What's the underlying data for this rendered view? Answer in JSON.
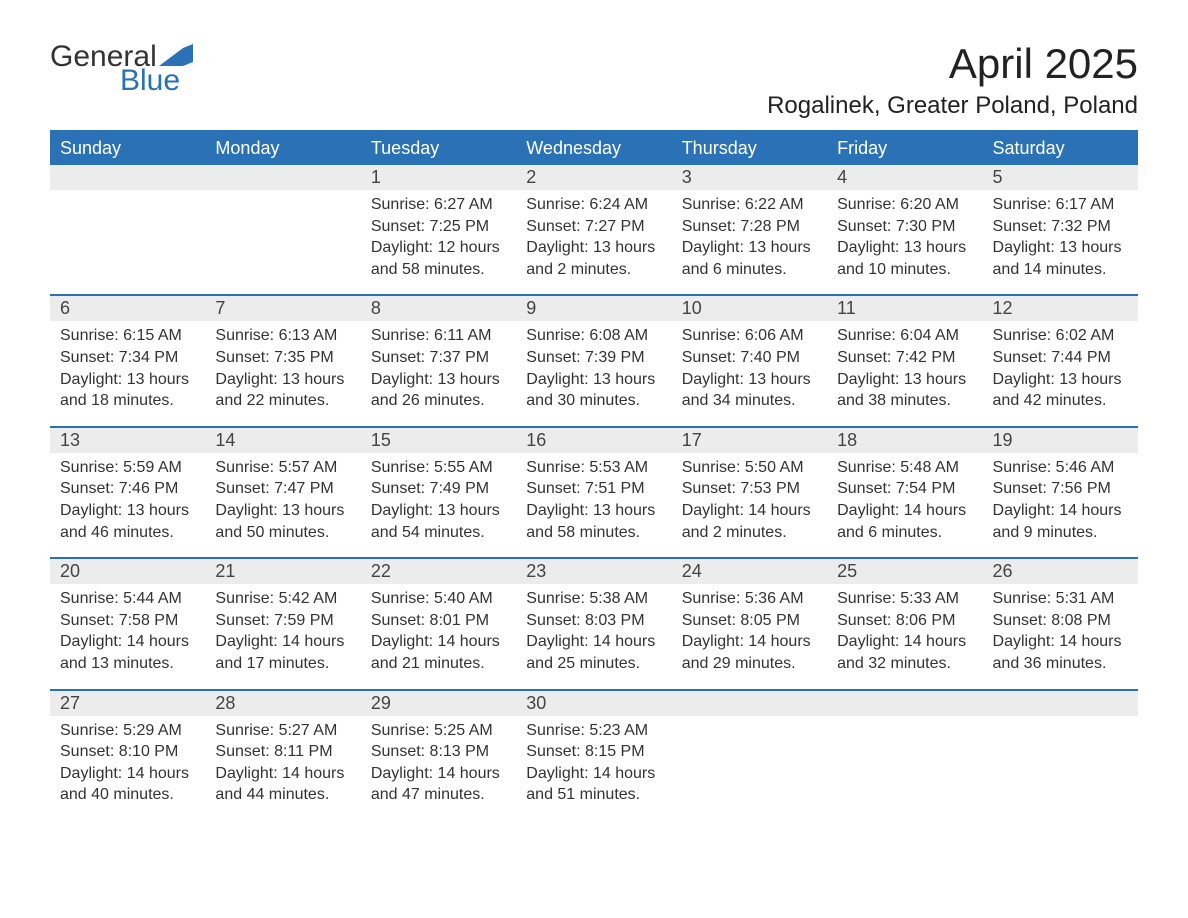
{
  "brand": {
    "general": "General",
    "blue": "Blue"
  },
  "title": "April 2025",
  "location": "Rogalinek, Greater Poland, Poland",
  "colors": {
    "accent": "#2a72b5",
    "header_bg": "#2a72b5",
    "header_text": "#ffffff",
    "daynum_bg": "#ececec",
    "body_text": "#333333",
    "page_bg": "#ffffff"
  },
  "typography": {
    "title_fontsize": 42,
    "location_fontsize": 24,
    "dow_fontsize": 18,
    "daynum_fontsize": 18,
    "cell_fontsize": 16,
    "logo_fontsize": 30
  },
  "layout": {
    "columns": 7,
    "rows": 5
  },
  "days_of_week": [
    "Sunday",
    "Monday",
    "Tuesday",
    "Wednesday",
    "Thursday",
    "Friday",
    "Saturday"
  ],
  "weeks": [
    [
      {
        "day": "",
        "sunrise": "",
        "sunset": "",
        "daylight1": "",
        "daylight2": ""
      },
      {
        "day": "",
        "sunrise": "",
        "sunset": "",
        "daylight1": "",
        "daylight2": ""
      },
      {
        "day": "1",
        "sunrise": "Sunrise: 6:27 AM",
        "sunset": "Sunset: 7:25 PM",
        "daylight1": "Daylight: 12 hours",
        "daylight2": "and 58 minutes."
      },
      {
        "day": "2",
        "sunrise": "Sunrise: 6:24 AM",
        "sunset": "Sunset: 7:27 PM",
        "daylight1": "Daylight: 13 hours",
        "daylight2": "and 2 minutes."
      },
      {
        "day": "3",
        "sunrise": "Sunrise: 6:22 AM",
        "sunset": "Sunset: 7:28 PM",
        "daylight1": "Daylight: 13 hours",
        "daylight2": "and 6 minutes."
      },
      {
        "day": "4",
        "sunrise": "Sunrise: 6:20 AM",
        "sunset": "Sunset: 7:30 PM",
        "daylight1": "Daylight: 13 hours",
        "daylight2": "and 10 minutes."
      },
      {
        "day": "5",
        "sunrise": "Sunrise: 6:17 AM",
        "sunset": "Sunset: 7:32 PM",
        "daylight1": "Daylight: 13 hours",
        "daylight2": "and 14 minutes."
      }
    ],
    [
      {
        "day": "6",
        "sunrise": "Sunrise: 6:15 AM",
        "sunset": "Sunset: 7:34 PM",
        "daylight1": "Daylight: 13 hours",
        "daylight2": "and 18 minutes."
      },
      {
        "day": "7",
        "sunrise": "Sunrise: 6:13 AM",
        "sunset": "Sunset: 7:35 PM",
        "daylight1": "Daylight: 13 hours",
        "daylight2": "and 22 minutes."
      },
      {
        "day": "8",
        "sunrise": "Sunrise: 6:11 AM",
        "sunset": "Sunset: 7:37 PM",
        "daylight1": "Daylight: 13 hours",
        "daylight2": "and 26 minutes."
      },
      {
        "day": "9",
        "sunrise": "Sunrise: 6:08 AM",
        "sunset": "Sunset: 7:39 PM",
        "daylight1": "Daylight: 13 hours",
        "daylight2": "and 30 minutes."
      },
      {
        "day": "10",
        "sunrise": "Sunrise: 6:06 AM",
        "sunset": "Sunset: 7:40 PM",
        "daylight1": "Daylight: 13 hours",
        "daylight2": "and 34 minutes."
      },
      {
        "day": "11",
        "sunrise": "Sunrise: 6:04 AM",
        "sunset": "Sunset: 7:42 PM",
        "daylight1": "Daylight: 13 hours",
        "daylight2": "and 38 minutes."
      },
      {
        "day": "12",
        "sunrise": "Sunrise: 6:02 AM",
        "sunset": "Sunset: 7:44 PM",
        "daylight1": "Daylight: 13 hours",
        "daylight2": "and 42 minutes."
      }
    ],
    [
      {
        "day": "13",
        "sunrise": "Sunrise: 5:59 AM",
        "sunset": "Sunset: 7:46 PM",
        "daylight1": "Daylight: 13 hours",
        "daylight2": "and 46 minutes."
      },
      {
        "day": "14",
        "sunrise": "Sunrise: 5:57 AM",
        "sunset": "Sunset: 7:47 PM",
        "daylight1": "Daylight: 13 hours",
        "daylight2": "and 50 minutes."
      },
      {
        "day": "15",
        "sunrise": "Sunrise: 5:55 AM",
        "sunset": "Sunset: 7:49 PM",
        "daylight1": "Daylight: 13 hours",
        "daylight2": "and 54 minutes."
      },
      {
        "day": "16",
        "sunrise": "Sunrise: 5:53 AM",
        "sunset": "Sunset: 7:51 PM",
        "daylight1": "Daylight: 13 hours",
        "daylight2": "and 58 minutes."
      },
      {
        "day": "17",
        "sunrise": "Sunrise: 5:50 AM",
        "sunset": "Sunset: 7:53 PM",
        "daylight1": "Daylight: 14 hours",
        "daylight2": "and 2 minutes."
      },
      {
        "day": "18",
        "sunrise": "Sunrise: 5:48 AM",
        "sunset": "Sunset: 7:54 PM",
        "daylight1": "Daylight: 14 hours",
        "daylight2": "and 6 minutes."
      },
      {
        "day": "19",
        "sunrise": "Sunrise: 5:46 AM",
        "sunset": "Sunset: 7:56 PM",
        "daylight1": "Daylight: 14 hours",
        "daylight2": "and 9 minutes."
      }
    ],
    [
      {
        "day": "20",
        "sunrise": "Sunrise: 5:44 AM",
        "sunset": "Sunset: 7:58 PM",
        "daylight1": "Daylight: 14 hours",
        "daylight2": "and 13 minutes."
      },
      {
        "day": "21",
        "sunrise": "Sunrise: 5:42 AM",
        "sunset": "Sunset: 7:59 PM",
        "daylight1": "Daylight: 14 hours",
        "daylight2": "and 17 minutes."
      },
      {
        "day": "22",
        "sunrise": "Sunrise: 5:40 AM",
        "sunset": "Sunset: 8:01 PM",
        "daylight1": "Daylight: 14 hours",
        "daylight2": "and 21 minutes."
      },
      {
        "day": "23",
        "sunrise": "Sunrise: 5:38 AM",
        "sunset": "Sunset: 8:03 PM",
        "daylight1": "Daylight: 14 hours",
        "daylight2": "and 25 minutes."
      },
      {
        "day": "24",
        "sunrise": "Sunrise: 5:36 AM",
        "sunset": "Sunset: 8:05 PM",
        "daylight1": "Daylight: 14 hours",
        "daylight2": "and 29 minutes."
      },
      {
        "day": "25",
        "sunrise": "Sunrise: 5:33 AM",
        "sunset": "Sunset: 8:06 PM",
        "daylight1": "Daylight: 14 hours",
        "daylight2": "and 32 minutes."
      },
      {
        "day": "26",
        "sunrise": "Sunrise: 5:31 AM",
        "sunset": "Sunset: 8:08 PM",
        "daylight1": "Daylight: 14 hours",
        "daylight2": "and 36 minutes."
      }
    ],
    [
      {
        "day": "27",
        "sunrise": "Sunrise: 5:29 AM",
        "sunset": "Sunset: 8:10 PM",
        "daylight1": "Daylight: 14 hours",
        "daylight2": "and 40 minutes."
      },
      {
        "day": "28",
        "sunrise": "Sunrise: 5:27 AM",
        "sunset": "Sunset: 8:11 PM",
        "daylight1": "Daylight: 14 hours",
        "daylight2": "and 44 minutes."
      },
      {
        "day": "29",
        "sunrise": "Sunrise: 5:25 AM",
        "sunset": "Sunset: 8:13 PM",
        "daylight1": "Daylight: 14 hours",
        "daylight2": "and 47 minutes."
      },
      {
        "day": "30",
        "sunrise": "Sunrise: 5:23 AM",
        "sunset": "Sunset: 8:15 PM",
        "daylight1": "Daylight: 14 hours",
        "daylight2": "and 51 minutes."
      },
      {
        "day": "",
        "sunrise": "",
        "sunset": "",
        "daylight1": "",
        "daylight2": ""
      },
      {
        "day": "",
        "sunrise": "",
        "sunset": "",
        "daylight1": "",
        "daylight2": ""
      },
      {
        "day": "",
        "sunrise": "",
        "sunset": "",
        "daylight1": "",
        "daylight2": ""
      }
    ]
  ]
}
